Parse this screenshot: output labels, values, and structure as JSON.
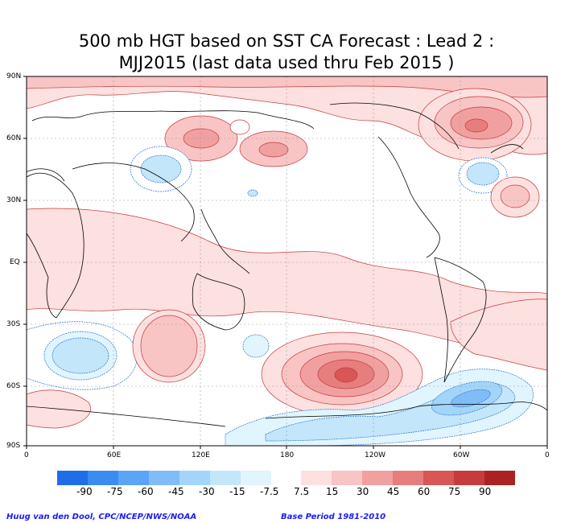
{
  "title": {
    "line1": "500 mb HGT based on SST CA Forecast : Lead 2 :",
    "line2": "MJJ2015 (last data used thru Feb 2015 )"
  },
  "axes": {
    "lat_labels": [
      "90N",
      "60N",
      "30N",
      "EQ",
      "30S",
      "60S",
      "90S"
    ],
    "lon_labels": [
      "0",
      "60E",
      "120E",
      "180",
      "120W",
      "60W",
      "0"
    ]
  },
  "colorbar": {
    "labels": [
      "-90",
      "-75",
      "-60",
      "-45",
      "-30",
      "-15",
      "-7.5",
      "7.5",
      "15",
      "30",
      "45",
      "60",
      "75",
      "90"
    ],
    "colors_negative": [
      "#1e6ee8",
      "#3a8cf0",
      "#5aa5f5",
      "#80bdf8",
      "#a3d5fa",
      "#c3e6fb",
      "#e0f5fd"
    ],
    "colors_positive": [
      "#fde0e0",
      "#f9c4c4",
      "#f1a0a0",
      "#e77e7e",
      "#d85656",
      "#c63c3c",
      "#ab2222"
    ]
  },
  "footer": {
    "left": "Huug van den Dool, CPC/NCEP/NWS/NOAA",
    "right": "Base Period 1981-2010"
  }
}
